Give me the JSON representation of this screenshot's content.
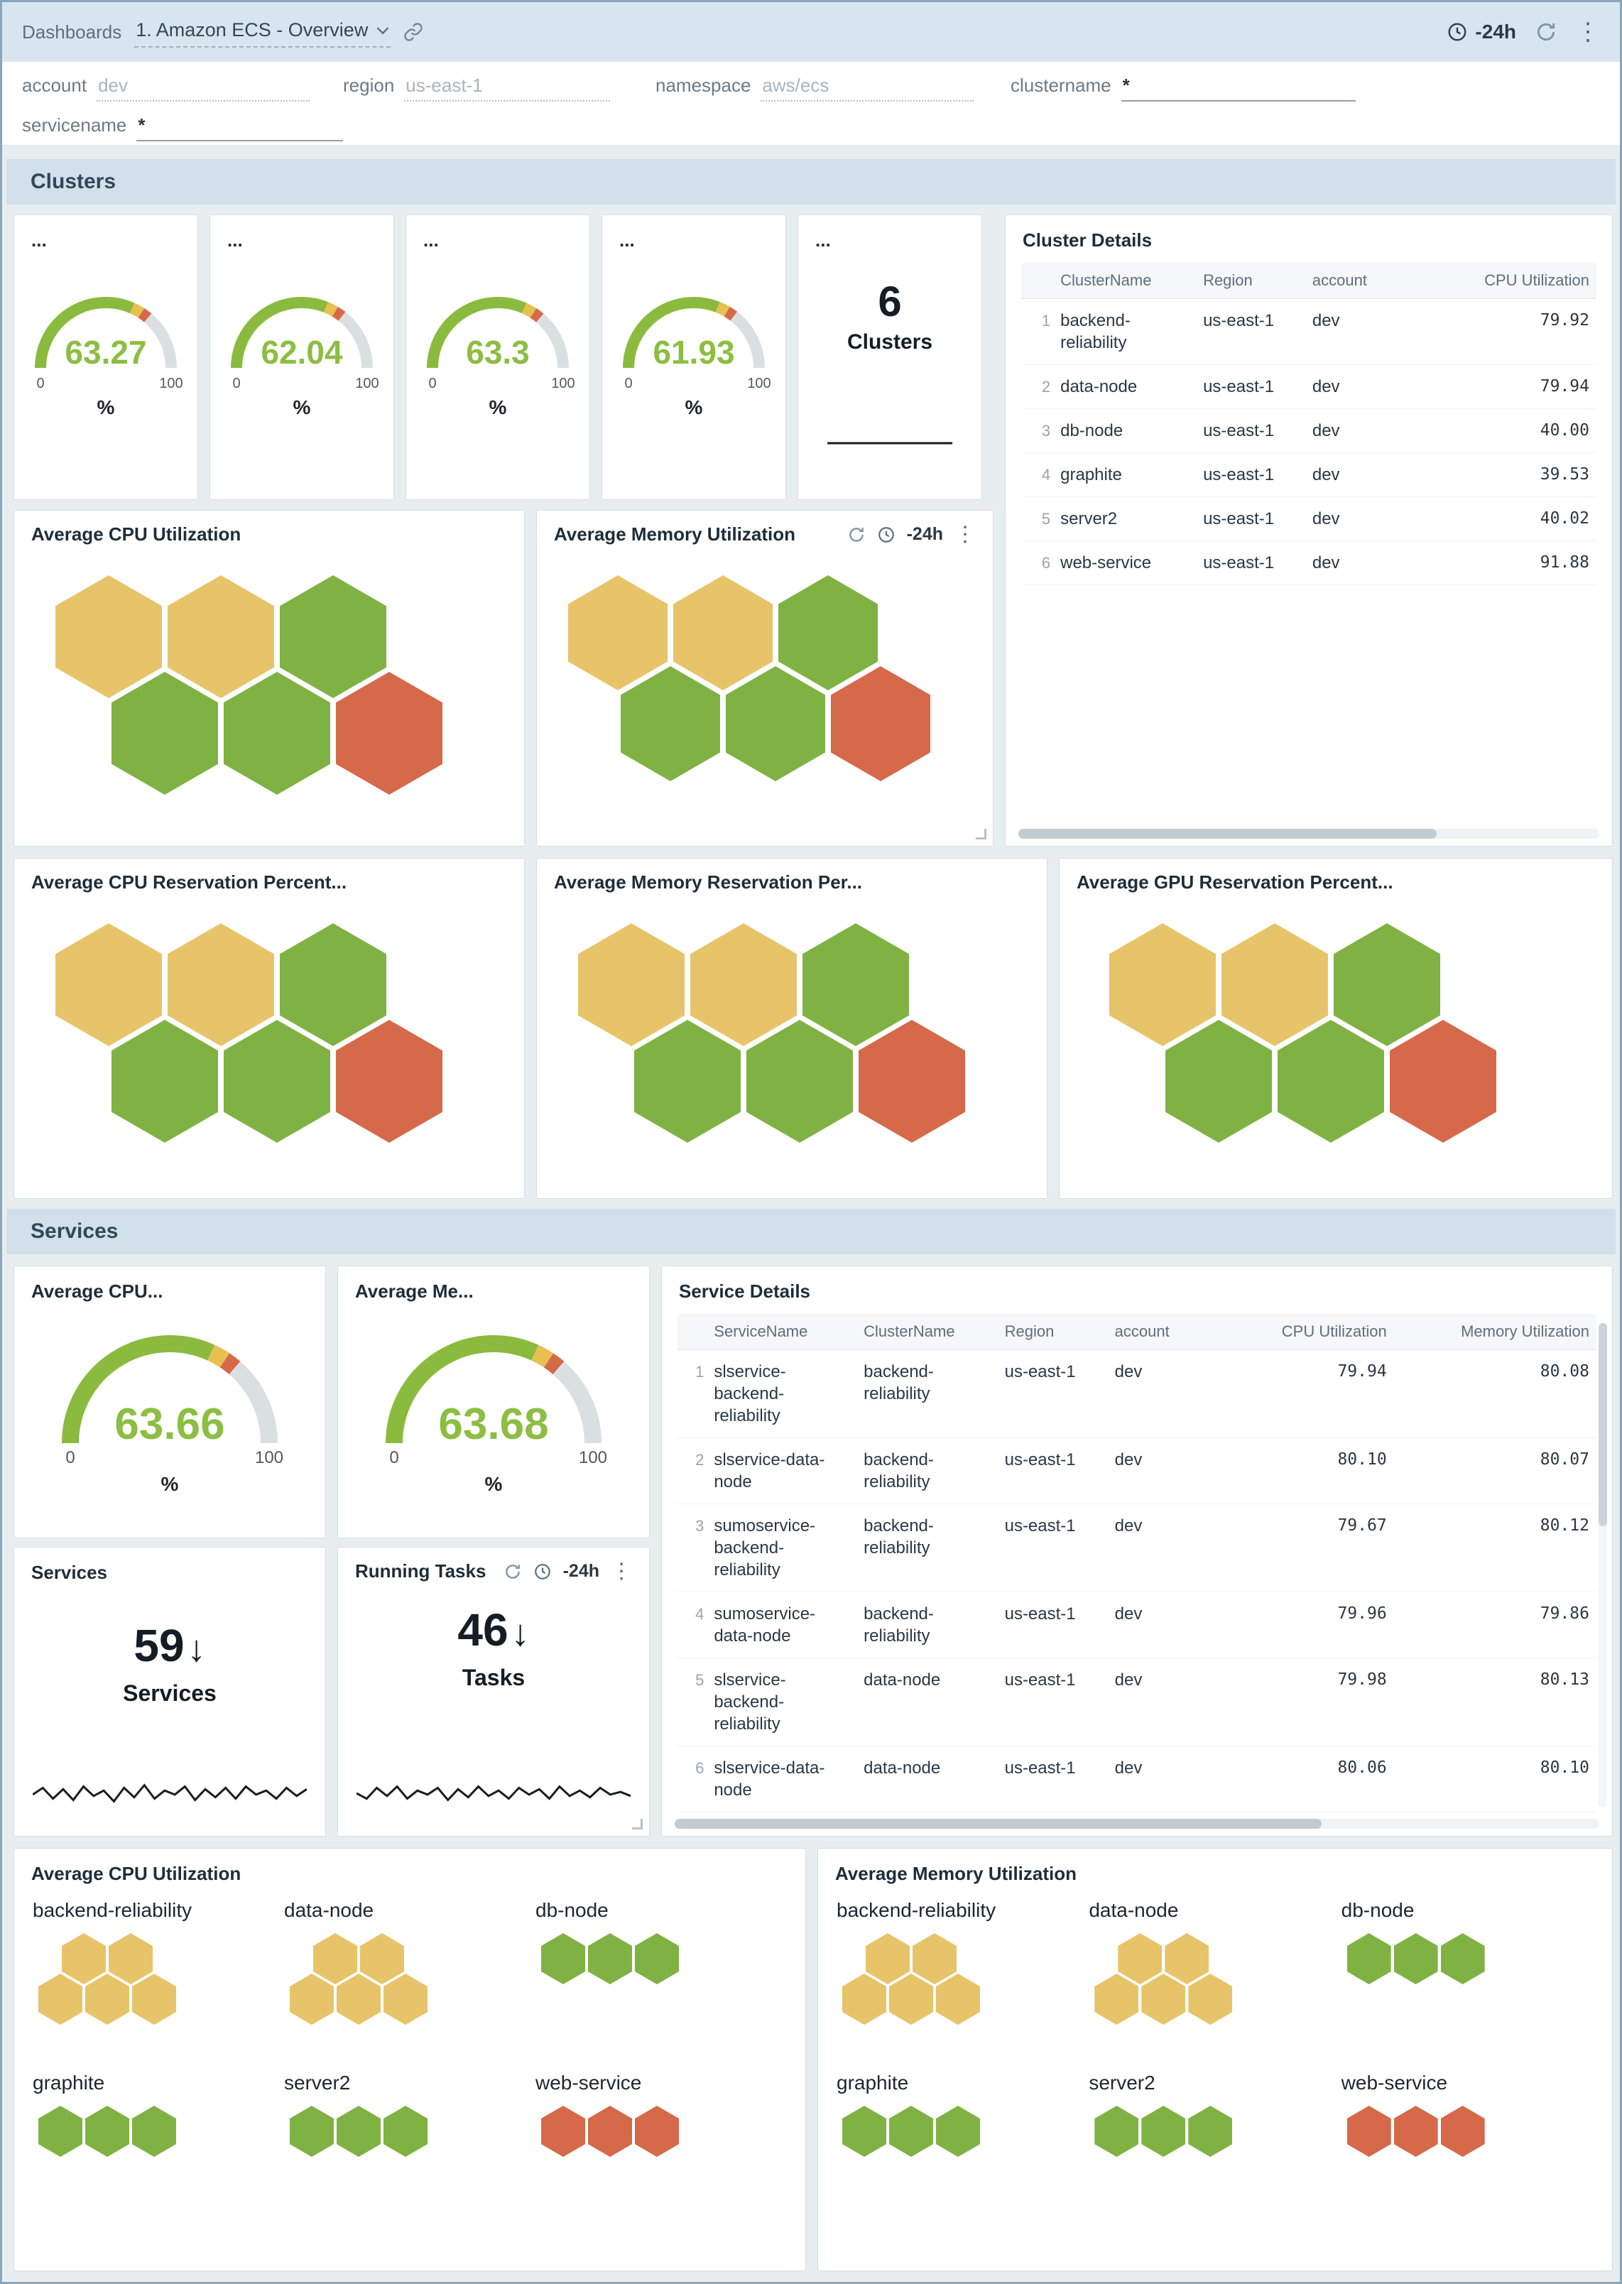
{
  "colors": {
    "yellow": "#e7c469",
    "green": "#7fb243",
    "red": "#d5694a",
    "gauge_green": "#8abb3e",
    "gauge_yellow": "#e8c050",
    "gauge_red": "#d5694a",
    "gauge_track": "#dadfe2",
    "gauge_value_text": "#8cbe41",
    "spark": "#161d23"
  },
  "topbar": {
    "breadcrumb": "Dashboards",
    "title": "1. Amazon ECS - Overview",
    "time_range": "-24h"
  },
  "filters": {
    "account": {
      "label": "account",
      "value": "dev"
    },
    "region": {
      "label": "region",
      "value": "us-east-1"
    },
    "namespace": {
      "label": "namespace",
      "value": "aws/ecs"
    },
    "clustername": {
      "label": "clustername",
      "value": "*"
    },
    "servicename": {
      "label": "servicename",
      "value": "*"
    }
  },
  "sections": {
    "clusters": "Clusters",
    "services": "Services"
  },
  "cluster_gauges": [
    {
      "title": "...",
      "value": 63.27,
      "display": "63.27",
      "min": "0",
      "max": "100",
      "unit": "%"
    },
    {
      "title": "...",
      "value": 62.04,
      "display": "62.04",
      "min": "0",
      "max": "100",
      "unit": "%"
    },
    {
      "title": "...",
      "value": 63.3,
      "display": "63.3",
      "min": "0",
      "max": "100",
      "unit": "%"
    },
    {
      "title": "...",
      "value": 61.93,
      "display": "61.93",
      "min": "0",
      "max": "100",
      "unit": "%"
    }
  ],
  "cluster_count": {
    "title": "...",
    "value": "6",
    "label": "Clusters",
    "spark": [
      0.5,
      0.5
    ]
  },
  "cluster_details": {
    "title": "Cluster Details",
    "columns": [
      "ClusterName",
      "Region",
      "account",
      "CPU Utilization"
    ],
    "rows": [
      [
        "backend-reliability",
        "us-east-1",
        "dev",
        "79.92"
      ],
      [
        "data-node",
        "us-east-1",
        "dev",
        "79.94"
      ],
      [
        "db-node",
        "us-east-1",
        "dev",
        "40.00"
      ],
      [
        "graphite",
        "us-east-1",
        "dev",
        "39.53"
      ],
      [
        "server2",
        "us-east-1",
        "dev",
        "40.02"
      ],
      [
        "web-service",
        "us-east-1",
        "dev",
        "91.88"
      ]
    ]
  },
  "hives": {
    "cpu": {
      "title": "Average CPU Utilization",
      "rows": [
        {
          "offset": 0,
          "cells": [
            "yellow",
            "yellow",
            "green"
          ]
        },
        {
          "offset": 1,
          "cells": [
            "green",
            "green",
            "red"
          ]
        }
      ]
    },
    "memory": {
      "title": "Average Memory Utilization",
      "time_range": "-24h",
      "rows": [
        {
          "offset": 0,
          "cells": [
            "yellow",
            "yellow",
            "green"
          ]
        },
        {
          "offset": 1,
          "cells": [
            "green",
            "green",
            "red"
          ]
        }
      ]
    },
    "cpu_res": {
      "title": "Average CPU Reservation Percent...",
      "rows": [
        {
          "offset": 0,
          "cells": [
            "yellow",
            "yellow",
            "green"
          ]
        },
        {
          "offset": 1,
          "cells": [
            "green",
            "green",
            "red"
          ]
        }
      ]
    },
    "mem_res": {
      "title": "Average Memory Reservation Per...",
      "rows": [
        {
          "offset": 0,
          "cells": [
            "yellow",
            "yellow",
            "green"
          ]
        },
        {
          "offset": 1,
          "cells": [
            "green",
            "green",
            "red"
          ]
        }
      ]
    },
    "gpu_res": {
      "title": "Average GPU Reservation Percent...",
      "rows": [
        {
          "offset": 0,
          "cells": [
            "yellow",
            "yellow",
            "green"
          ]
        },
        {
          "offset": 1,
          "cells": [
            "green",
            "green",
            "red"
          ]
        }
      ]
    }
  },
  "service_gauges": [
    {
      "title": "Average CPU...",
      "value": 63.66,
      "display": "63.66",
      "min": "0",
      "max": "100",
      "unit": "%"
    },
    {
      "title": "Average Me...",
      "value": 63.68,
      "display": "63.68",
      "min": "0",
      "max": "100",
      "unit": "%"
    }
  ],
  "service_details": {
    "title": "Service Details",
    "columns": [
      "ServiceName",
      "ClusterName",
      "Region",
      "account",
      "CPU Utilization",
      "Memory Utilization"
    ],
    "rows": [
      [
        "slservice-backend-reliability",
        "backend-reliability",
        "us-east-1",
        "dev",
        "79.94",
        "80.08"
      ],
      [
        "slservice-data-node",
        "backend-reliability",
        "us-east-1",
        "dev",
        "80.10",
        "80.07"
      ],
      [
        "sumoservice-backend-reliability",
        "backend-reliability",
        "us-east-1",
        "dev",
        "79.67",
        "80.12"
      ],
      [
        "sumoservice-data-node",
        "backend-reliability",
        "us-east-1",
        "dev",
        "79.96",
        "79.86"
      ],
      [
        "slservice-backend-reliability",
        "data-node",
        "us-east-1",
        "dev",
        "79.98",
        "80.13"
      ],
      [
        "slservice-data-node",
        "data-node",
        "us-east-1",
        "dev",
        "80.06",
        "80.10"
      ]
    ]
  },
  "services_panel": {
    "title": "Services",
    "value": "59",
    "arrow": "↓",
    "label": "Services",
    "spark": [
      0.45,
      0.7,
      0.3,
      0.65,
      0.25,
      0.75,
      0.4,
      0.6,
      0.2,
      0.7,
      0.35,
      0.8,
      0.3,
      0.6,
      0.45,
      0.75,
      0.25,
      0.65,
      0.35,
      0.7,
      0.3,
      0.75,
      0.45,
      0.6,
      0.3,
      0.7,
      0.4,
      0.65
    ]
  },
  "tasks_panel": {
    "title": "Running Tasks",
    "time_range": "-24h",
    "value": "46",
    "arrow": "↓",
    "label": "Tasks",
    "spark": [
      0.5,
      0.3,
      0.7,
      0.4,
      0.75,
      0.3,
      0.6,
      0.45,
      0.7,
      0.25,
      0.65,
      0.35,
      0.75,
      0.4,
      0.6,
      0.3,
      0.7,
      0.45,
      0.65,
      0.3,
      0.75,
      0.4,
      0.6,
      0.35,
      0.7,
      0.45,
      0.55,
      0.4
    ]
  },
  "bottom_cpu": {
    "title": "Average CPU Utilization",
    "groups": [
      {
        "name": "backend-reliability",
        "rows": [
          {
            "offset": 1,
            "cells": [
              "yellow",
              "yellow"
            ]
          },
          {
            "offset": 0,
            "cells": [
              "yellow",
              "yellow",
              "yellow"
            ]
          }
        ]
      },
      {
        "name": "data-node",
        "rows": [
          {
            "offset": 1,
            "cells": [
              "yellow",
              "yellow"
            ]
          },
          {
            "offset": 0,
            "cells": [
              "yellow",
              "yellow",
              "yellow"
            ]
          }
        ]
      },
      {
        "name": "db-node",
        "rows": [
          {
            "offset": 0,
            "cells": [
              "green",
              "green",
              "green"
            ]
          }
        ]
      },
      {
        "name": "graphite",
        "rows": [
          {
            "offset": 0,
            "cells": [
              "green",
              "green",
              "green"
            ]
          }
        ]
      },
      {
        "name": "server2",
        "rows": [
          {
            "offset": 0,
            "cells": [
              "green",
              "green",
              "green"
            ]
          }
        ]
      },
      {
        "name": "web-service",
        "rows": [
          {
            "offset": 0,
            "cells": [
              "red",
              "red",
              "red"
            ]
          }
        ]
      }
    ]
  },
  "bottom_memory": {
    "title": "Average Memory Utilization",
    "groups": [
      {
        "name": "backend-reliability",
        "rows": [
          {
            "offset": 1,
            "cells": [
              "yellow",
              "yellow"
            ]
          },
          {
            "offset": 0,
            "cells": [
              "yellow",
              "yellow",
              "yellow"
            ]
          }
        ]
      },
      {
        "name": "data-node",
        "rows": [
          {
            "offset": 1,
            "cells": [
              "yellow",
              "yellow"
            ]
          },
          {
            "offset": 0,
            "cells": [
              "yellow",
              "yellow",
              "yellow"
            ]
          }
        ]
      },
      {
        "name": "db-node",
        "rows": [
          {
            "offset": 0,
            "cells": [
              "green",
              "green",
              "green"
            ]
          }
        ]
      },
      {
        "name": "graphite",
        "rows": [
          {
            "offset": 0,
            "cells": [
              "green",
              "green",
              "green"
            ]
          }
        ]
      },
      {
        "name": "server2",
        "rows": [
          {
            "offset": 0,
            "cells": [
              "green",
              "green",
              "green"
            ]
          }
        ]
      },
      {
        "name": "web-service",
        "rows": [
          {
            "offset": 0,
            "cells": [
              "red",
              "red",
              "red"
            ]
          }
        ]
      }
    ]
  }
}
